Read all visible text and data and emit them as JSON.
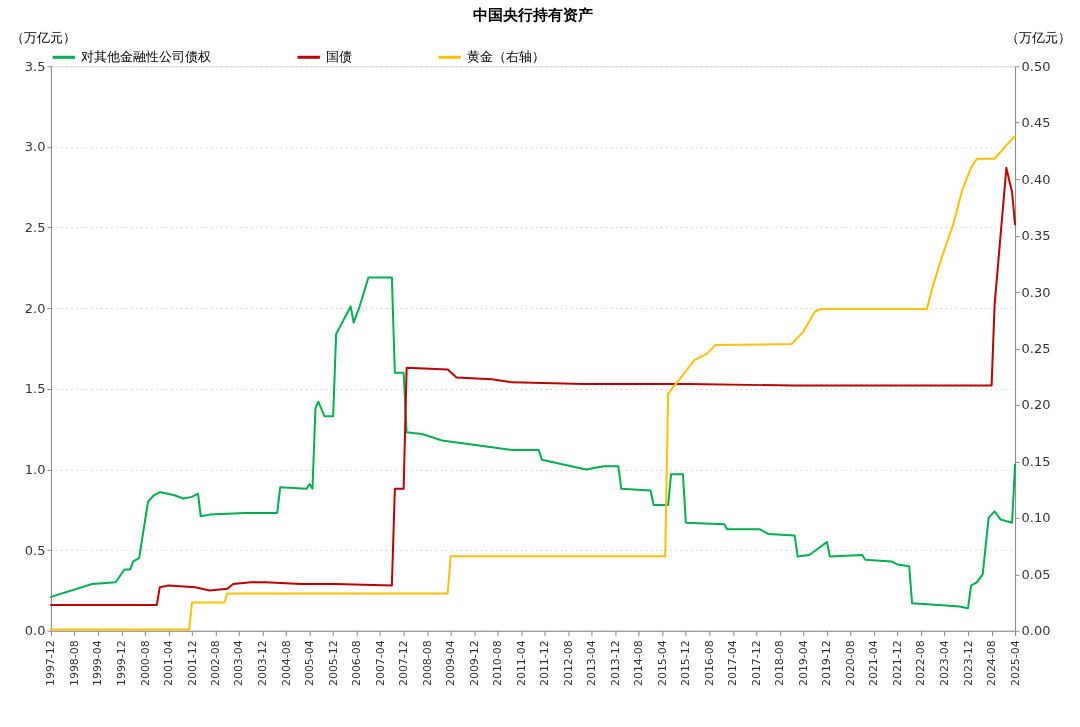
{
  "chart_data": {
    "type": "line",
    "title": "中国央行持有资产",
    "ylabel": "（万亿元）",
    "y2label": "（万亿元）",
    "legend": "top",
    "grid": "y",
    "xlim": [
      "1997-12",
      "2025-04"
    ],
    "xticks": [
      "1997-12",
      "1998-08",
      "1999-04",
      "1999-12",
      "2000-08",
      "2001-04",
      "2001-12",
      "2002-08",
      "2003-04",
      "2003-12",
      "2004-08",
      "2005-04",
      "2005-12",
      "2006-08",
      "2007-04",
      "2007-12",
      "2008-08",
      "2009-04",
      "2009-12",
      "2010-08",
      "2011-04",
      "2011-12",
      "2012-08",
      "2013-04",
      "2013-12",
      "2014-08",
      "2015-04",
      "2015-12",
      "2016-08",
      "2017-04",
      "2017-12",
      "2018-08",
      "2019-04",
      "2019-12",
      "2020-08",
      "2021-04",
      "2021-12",
      "2022-08",
      "2023-04",
      "2023-12",
      "2024-08",
      "2025-04"
    ],
    "ylim": [
      0,
      3.5
    ],
    "yticks": [
      {
        "value": 0,
        "label": "0.0"
      },
      {
        "value": 0.5,
        "label": "0.5"
      },
      {
        "value": 1,
        "label": "1.0"
      },
      {
        "value": 1.5,
        "label": "1.5"
      },
      {
        "value": 2,
        "label": "2.0"
      },
      {
        "value": 2.5,
        "label": "2.5"
      },
      {
        "value": 3,
        "label": "3.0"
      },
      {
        "value": 3.5,
        "label": "3.5"
      }
    ],
    "y2lim": [
      0,
      0.5
    ],
    "y2ticks": [
      {
        "value": 0,
        "label": "0.00"
      },
      {
        "value": 0.05,
        "label": "0.05"
      },
      {
        "value": 0.1,
        "label": "0.10"
      },
      {
        "value": 0.15,
        "label": "0.15"
      },
      {
        "value": 0.2,
        "label": "0.20"
      },
      {
        "value": 0.25,
        "label": "0.25"
      },
      {
        "value": 0.3,
        "label": "0.30"
      },
      {
        "value": 0.35,
        "label": "0.35"
      },
      {
        "value": 0.4,
        "label": "0.40"
      },
      {
        "value": 0.45,
        "label": "0.45"
      },
      {
        "value": 0.5,
        "label": "0.50"
      }
    ],
    "series": [
      {
        "name": "对其他金融性公司债权",
        "color": "#00b050",
        "x": [
          "1997-12",
          "1999-02",
          "1999-10",
          "2000-01",
          "2000-03",
          "2000-04",
          "2000-06",
          "2000-09",
          "2000-11",
          "2001-01",
          "2001-06",
          "2001-09",
          "2001-12",
          "2002-02",
          "2002-03",
          "2002-06",
          "2003-06",
          "2004-05",
          "2004-06",
          "2005-03",
          "2005-04",
          "2005-05",
          "2005-06",
          "2005-07",
          "2005-09",
          "2005-12",
          "2006-01",
          "2006-06",
          "2006-07",
          "2006-09",
          "2006-12",
          "2007-08",
          "2007-09",
          "2007-12",
          "2008-01",
          "2008-06",
          "2008-08",
          "2009-01",
          "2010-01",
          "2011-01",
          "2011-10",
          "2011-11",
          "2012-09",
          "2013-02",
          "2013-08",
          "2014-01",
          "2014-02",
          "2014-12",
          "2015-01",
          "2015-06",
          "2015-07",
          "2015-11",
          "2015-12",
          "2017-01",
          "2017-02",
          "2018-01",
          "2018-04",
          "2019-01",
          "2019-02",
          "2019-06",
          "2019-09",
          "2019-12",
          "2020-01",
          "2020-12",
          "2021-01",
          "2021-10",
          "2021-12",
          "2022-04",
          "2022-05",
          "2023-02",
          "2023-09",
          "2023-12",
          "2024-01",
          "2024-03",
          "2024-05",
          "2024-07",
          "2024-09",
          "2024-11",
          "2025-03",
          "2025-04"
        ],
        "values": [
          0.21,
          0.29,
          0.3,
          0.38,
          0.38,
          0.43,
          0.45,
          0.8,
          0.84,
          0.86,
          0.84,
          0.82,
          0.83,
          0.85,
          0.71,
          0.72,
          0.73,
          0.73,
          0.89,
          0.88,
          0.91,
          0.88,
          1.38,
          1.42,
          1.33,
          1.33,
          1.84,
          2.01,
          1.91,
          2.01,
          2.19,
          2.19,
          1.6,
          1.6,
          1.23,
          1.22,
          1.21,
          1.18,
          1.15,
          1.12,
          1.12,
          1.06,
          1.02,
          1.0,
          1.02,
          1.02,
          0.88,
          0.87,
          0.78,
          0.78,
          0.97,
          0.97,
          0.67,
          0.66,
          0.63,
          0.63,
          0.6,
          0.59,
          0.46,
          0.47,
          0.51,
          0.55,
          0.46,
          0.47,
          0.44,
          0.43,
          0.41,
          0.4,
          0.17,
          0.16,
          0.15,
          0.14,
          0.28,
          0.3,
          0.35,
          0.7,
          0.74,
          0.69,
          0.67,
          1.03
        ]
      },
      {
        "name": "国债",
        "color": "#c00000",
        "x": [
          "1997-12",
          "2000-12",
          "2001-01",
          "2001-04",
          "2002-01",
          "2002-06",
          "2002-12",
          "2003-02",
          "2003-08",
          "2004-01",
          "2005-01",
          "2006-01",
          "2007-08",
          "2007-09",
          "2007-12",
          "2008-01",
          "2009-03",
          "2009-06",
          "2010-06",
          "2011-01",
          "2013-01",
          "2016-01",
          "2019-01",
          "2024-08",
          "2024-09",
          "2025-01",
          "2025-02",
          "2025-03",
          "2025-04"
        ],
        "values": [
          0.16,
          0.16,
          0.27,
          0.28,
          0.27,
          0.25,
          0.26,
          0.29,
          0.3,
          0.3,
          0.29,
          0.29,
          0.28,
          0.88,
          0.88,
          1.63,
          1.62,
          1.57,
          1.56,
          1.54,
          1.53,
          1.53,
          1.52,
          1.52,
          2.02,
          2.87,
          2.79,
          2.72,
          2.52
        ]
      },
      {
        "name": "黄金（右轴）",
        "color": "#ffc000",
        "axis": "y2",
        "x": [
          "1997-12",
          "2001-11",
          "2001-12",
          "2002-11",
          "2002-12",
          "2009-03",
          "2009-04",
          "2015-05",
          "2015-06",
          "2015-09",
          "2016-03",
          "2016-07",
          "2016-10",
          "2018-12",
          "2019-04",
          "2019-08",
          "2019-10",
          "2022-10",
          "2022-12",
          "2023-03",
          "2023-07",
          "2023-10",
          "2024-01",
          "2024-03",
          "2024-09",
          "2025-01",
          "2025-04"
        ],
        "values": [
          0.001,
          0.001,
          0.025,
          0.025,
          0.033,
          0.033,
          0.066,
          0.066,
          0.21,
          0.22,
          0.24,
          0.245,
          0.253,
          0.254,
          0.265,
          0.283,
          0.285,
          0.285,
          0.305,
          0.33,
          0.36,
          0.39,
          0.41,
          0.418,
          0.418,
          0.43,
          0.438
        ]
      }
    ]
  }
}
